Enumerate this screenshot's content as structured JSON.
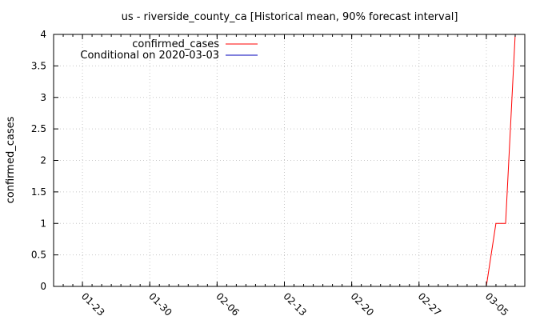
{
  "chart_data": {
    "type": "line",
    "title": "us - riverside_county_ca [Historical mean, 90% forecast interval]",
    "xlabel": "",
    "ylabel": "confirmed_cases",
    "x_tick_labels": [
      "01-23",
      "01-30",
      "02-06",
      "02-13",
      "02-20",
      "02-27",
      "03-05"
    ],
    "x_tick_dates": [
      "2020-01-23",
      "2020-01-30",
      "2020-02-06",
      "2020-02-13",
      "2020-02-20",
      "2020-02-27",
      "2020-03-05"
    ],
    "xlim": [
      "2020-01-20",
      "2020-03-09"
    ],
    "ylim": [
      0,
      4
    ],
    "y_ticks": [
      0,
      0.5,
      1,
      1.5,
      2,
      2.5,
      3,
      3.5,
      4
    ],
    "y_tick_labels": [
      "0",
      "0.5",
      "1",
      "1.5",
      "2",
      "2.5",
      "3",
      "3.5",
      "4"
    ],
    "grid": true,
    "legend_position": "top-left",
    "series": [
      {
        "name": "confirmed_cases",
        "color": "#ff0000",
        "x": [
          "2020-03-05",
          "2020-03-06",
          "2020-03-07",
          "2020-03-08"
        ],
        "y": [
          0,
          1,
          1,
          4
        ]
      },
      {
        "name": "Conditional on 2020-03-03",
        "color": "#0000bb",
        "x": [],
        "y": []
      }
    ]
  }
}
